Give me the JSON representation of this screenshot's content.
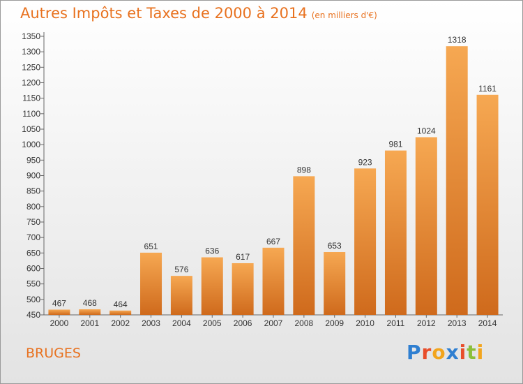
{
  "header": {
    "title": "Autres Impôts et Taxes de 2000 à 2014",
    "unit": "(en milliers d'€)"
  },
  "footer": {
    "location": "BRUGES",
    "logo_text": "Proxiti"
  },
  "colors": {
    "accent": "#e8711e",
    "bar_top": "#f6a852",
    "bar_bottom": "#cf6a1c",
    "logo_letters": [
      "#2f7fd1",
      "#e84d2a",
      "#f2a51e",
      "#2f7fd1",
      "#e84d2a",
      "#8bbf3a",
      "#f2a51e"
    ]
  },
  "chart_data": {
    "type": "bar",
    "title": "Autres Impôts et Taxes de 2000 à 2014",
    "subtitle": "(en milliers d'€)",
    "xlabel": "",
    "ylabel": "",
    "categories": [
      "2000",
      "2001",
      "2002",
      "2003",
      "2004",
      "2005",
      "2006",
      "2007",
      "2008",
      "2009",
      "2010",
      "2011",
      "2012",
      "2013",
      "2014"
    ],
    "values": [
      467,
      468,
      464,
      651,
      576,
      636,
      617,
      667,
      898,
      653,
      923,
      981,
      1024,
      1318,
      1161
    ],
    "ylim": [
      450,
      1350
    ],
    "yticks": [
      450,
      500,
      550,
      600,
      650,
      700,
      750,
      800,
      850,
      900,
      950,
      1000,
      1050,
      1100,
      1150,
      1200,
      1250,
      1300,
      1350
    ],
    "grid": false,
    "legend": "none"
  }
}
